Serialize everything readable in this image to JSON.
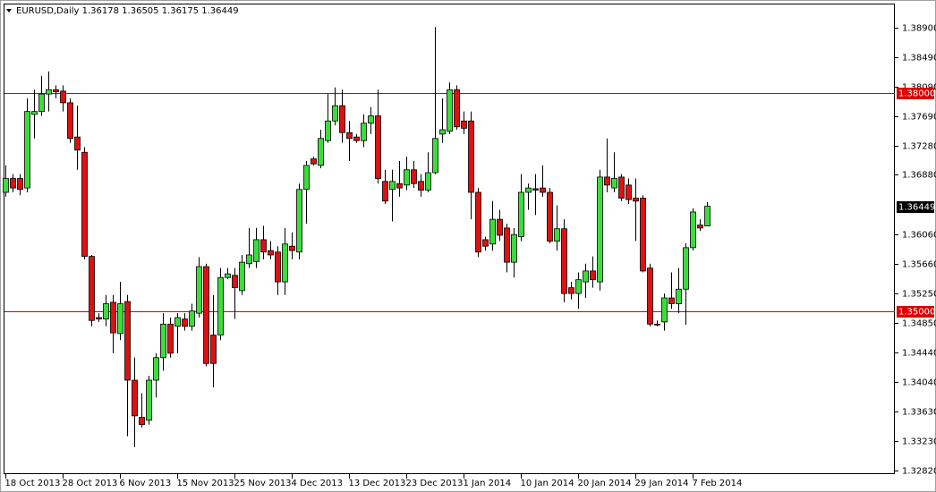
{
  "chart_data": {
    "type": "candlestick",
    "title": "EURUSD,Daily",
    "categories": [
      "18 Oct 2013",
      null,
      null,
      null,
      null,
      null,
      null,
      null,
      "28 Oct 2013",
      null,
      null,
      null,
      null,
      null,
      null,
      null,
      "6 Nov 2013",
      null,
      null,
      null,
      null,
      null,
      null,
      null,
      "15 Nov 2013",
      null,
      null,
      null,
      null,
      null,
      null,
      null,
      "25 Nov 2013",
      null,
      null,
      null,
      null,
      null,
      null,
      null,
      "4 Dec 2013",
      null,
      null,
      null,
      null,
      null,
      null,
      null,
      "13 Dec 2013",
      null,
      null,
      null,
      null,
      null,
      null,
      null,
      "23 Dec 2013",
      null,
      null,
      null,
      null,
      null,
      null,
      null,
      "1 Jan 2014",
      null,
      null,
      null,
      null,
      null,
      null,
      null,
      "10 Jan 2014",
      null,
      null,
      null,
      null,
      null,
      null,
      null,
      "20 Jan 2014",
      null,
      null,
      null,
      null,
      null,
      null,
      null,
      "29 Jan 2014",
      null,
      null,
      null,
      null,
      null,
      null,
      null,
      "7 Feb 2014",
      null,
      null
    ],
    "open": [
      1.3664,
      1.3683,
      1.3683,
      1.367,
      1.3771,
      1.3775,
      1.3799,
      1.3805,
      1.3803,
      1.3787,
      1.374,
      1.3719,
      1.3576,
      1.3492,
      1.349,
      1.3513,
      1.347,
      1.3514,
      1.3406,
      1.3355,
      1.3351,
      1.3406,
      1.3437,
      1.3483,
      1.348,
      1.349,
      1.348,
      1.3498,
      1.3562,
      1.3468,
      1.3468,
      1.3547,
      1.355,
      1.3529,
      1.3566,
      1.3569,
      1.3599,
      1.3584,
      1.3582,
      1.3541,
      1.359,
      1.3582,
      1.3668,
      1.371,
      1.3701,
      1.3735,
      1.3762,
      1.3783,
      1.3746,
      1.374,
      1.3735,
      1.3759,
      1.3769,
      1.3679,
      1.3668,
      1.3676,
      1.3674,
      1.3695,
      1.3679,
      1.3667,
      1.3691,
      1.3744,
      1.3748,
      1.3805,
      1.3762,
      1.3762,
      1.3664,
      1.3599,
      1.3593,
      1.3627,
      1.3615,
      1.3568,
      1.3603,
      1.3664,
      1.3669,
      1.367,
      1.3664,
      1.3597,
      1.3614,
      1.3533,
      1.3525,
      1.3541,
      1.3556,
      1.3541,
      1.3685,
      1.367,
      1.3685,
      1.3674,
      1.3656,
      1.3656,
      1.356,
      1.3483,
      1.3486,
      1.3519,
      1.3511,
      1.3531,
      1.3588,
      1.3619,
      1.36178
    ],
    "high": [
      1.3701,
      1.3689,
      1.3689,
      1.3793,
      1.3805,
      1.3824,
      1.383,
      1.3811,
      1.3811,
      1.3793,
      1.3783,
      1.3726,
      1.3578,
      1.3498,
      1.3523,
      1.3523,
      1.3541,
      1.3523,
      1.3437,
      1.3388,
      1.3412,
      1.3443,
      1.3498,
      1.3492,
      1.3498,
      1.3498,
      1.3511,
      1.3575,
      1.3566,
      1.3523,
      1.356,
      1.356,
      1.356,
      1.3578,
      1.3615,
      1.3615,
      1.3618,
      1.3597,
      1.359,
      1.3615,
      1.3609,
      1.3676,
      1.3707,
      1.3713,
      1.375,
      1.3799,
      1.3808,
      1.3805,
      1.3762,
      1.3744,
      1.3771,
      1.3781,
      1.3805,
      1.3695,
      1.3695,
      1.3707,
      1.3713,
      1.3707,
      1.3689,
      1.3719,
      1.3891,
      1.3793,
      1.3815,
      1.3811,
      1.3775,
      1.3775,
      1.367,
      1.3603,
      1.3652,
      1.364,
      1.3621,
      1.3615,
      1.3689,
      1.3676,
      1.3689,
      1.3701,
      1.367,
      1.3646,
      1.3627,
      1.3541,
      1.3554,
      1.3566,
      1.3576,
      1.3695,
      1.3738,
      1.3719,
      1.3689,
      1.3683,
      1.3683,
      1.366,
      1.3566,
      1.3488,
      1.3525,
      1.3554,
      1.356,
      1.3594,
      1.3642,
      1.3627,
      1.36505
    ],
    "low": [
      1.3658,
      1.3664,
      1.366,
      1.3664,
      1.3738,
      1.3769,
      1.3775,
      1.3793,
      1.3775,
      1.3732,
      1.3695,
      1.3572,
      1.348,
      1.3486,
      1.348,
      1.3443,
      1.3461,
      1.3329,
      1.3314,
      1.3341,
      1.3345,
      1.3382,
      1.3419,
      1.3437,
      1.3443,
      1.3474,
      1.3474,
      1.3492,
      1.3425,
      1.3396,
      1.3461,
      1.3545,
      1.349,
      1.3523,
      1.356,
      1.356,
      1.3572,
      1.3572,
      1.3523,
      1.3523,
      1.3572,
      1.3572,
      1.3621,
      1.3701,
      1.3697,
      1.3732,
      1.3756,
      1.3732,
      1.3707,
      1.3732,
      1.3726,
      1.3744,
      1.3676,
      1.3648,
      1.3624,
      1.3658,
      1.3667,
      1.367,
      1.3658,
      1.3664,
      1.3689,
      1.3732,
      1.3744,
      1.375,
      1.3744,
      1.3627,
      1.3575,
      1.3584,
      1.3584,
      1.3597,
      1.3554,
      1.3547,
      1.3597,
      1.364,
      1.3633,
      1.3658,
      1.3594,
      1.3584,
      1.3513,
      1.3517,
      1.3504,
      1.3519,
      1.3533,
      1.3529,
      1.3664,
      1.3664,
      1.3652,
      1.3648,
      1.3597,
      1.3554,
      1.348,
      1.348,
      1.3474,
      1.3504,
      1.3498,
      1.3482,
      1.3584,
      1.3611,
      1.36175
    ],
    "close": [
      1.3683,
      1.367,
      1.3668,
      1.3775,
      1.3775,
      1.3799,
      1.3805,
      1.3802,
      1.3787,
      1.3738,
      1.3722,
      1.3576,
      1.3488,
      1.349,
      1.3511,
      1.3471,
      1.3511,
      1.3406,
      1.3357,
      1.3345,
      1.3406,
      1.3437,
      1.3483,
      1.3443,
      1.3492,
      1.348,
      1.3501,
      1.3562,
      1.3429,
      1.3429,
      1.3547,
      1.3552,
      1.3533,
      1.3568,
      1.3578,
      1.3599,
      1.3582,
      1.3578,
      1.3541,
      1.3593,
      1.3584,
      1.3668,
      1.3701,
      1.3703,
      1.3738,
      1.3762,
      1.3783,
      1.3746,
      1.3738,
      1.3735,
      1.3759,
      1.3769,
      1.3683,
      1.3652,
      1.3679,
      1.367,
      1.3695,
      1.3676,
      1.3667,
      1.3691,
      1.3738,
      1.375,
      1.3805,
      1.3754,
      1.3752,
      1.3664,
      1.3582,
      1.359,
      1.3627,
      1.3605,
      1.3568,
      1.3606,
      1.3664,
      1.367,
      1.3667,
      1.3664,
      1.3597,
      1.3614,
      1.3525,
      1.3525,
      1.3544,
      1.3556,
      1.3544,
      1.3685,
      1.3674,
      1.3683,
      1.3656,
      1.3654,
      1.3652,
      1.3556,
      1.3483,
      1.3482,
      1.3519,
      1.3511,
      1.3531,
      1.3588,
      1.3637,
      1.3615,
      1.36449
    ],
    "up_color": "#3ddc3d",
    "down_color": "#dd1111",
    "ylim": [
      1.3277,
      1.3922
    ],
    "yticks": [
      {
        "value": 1.389,
        "label": "1.38900"
      },
      {
        "value": 1.3849,
        "label": "1.38490"
      },
      {
        "value": 1.3809,
        "label": "1.38090"
      },
      {
        "value": 1.3769,
        "label": "1.37690"
      },
      {
        "value": 1.3728,
        "label": "1.37280"
      },
      {
        "value": 1.3688,
        "label": "1.36880"
      },
      {
        "value": 1.3606,
        "label": "1.36060"
      },
      {
        "value": 1.3566,
        "label": "1.35660"
      },
      {
        "value": 1.3525,
        "label": "1.35250"
      },
      {
        "value": 1.3485,
        "label": "1.34850"
      },
      {
        "value": 1.3444,
        "label": "1.34440"
      },
      {
        "value": 1.3404,
        "label": "1.34040"
      },
      {
        "value": 1.3363,
        "label": "1.33630"
      },
      {
        "value": 1.3323,
        "label": "1.33230"
      },
      {
        "value": 1.3282,
        "label": "1.32820"
      }
    ],
    "hlines": [
      {
        "value": 1.38,
        "label": "1.38000"
      },
      {
        "value": 1.35,
        "label": "1.35000"
      }
    ],
    "hline_color": "#dd0000"
  }
}
